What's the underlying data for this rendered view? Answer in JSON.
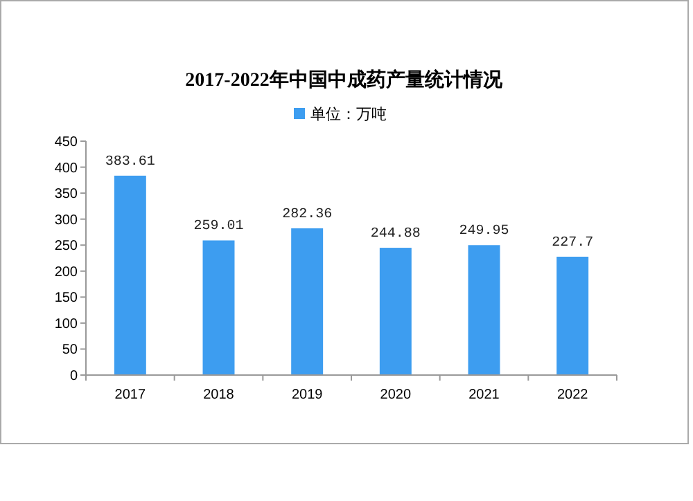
{
  "chart_data": {
    "type": "bar",
    "title": "2017-2022年中国中成药产量统计情况",
    "categories": [
      "2017",
      "2018",
      "2019",
      "2020",
      "2021",
      "2022"
    ],
    "series": [
      {
        "name": "单位：万吨",
        "color": "#3d9df0",
        "values": [
          383.61,
          259.01,
          282.36,
          244.88,
          249.95,
          227.7
        ]
      }
    ],
    "ylim": [
      0,
      450
    ],
    "yticks": [
      0,
      50,
      100,
      150,
      200,
      250,
      300,
      350,
      400,
      450
    ],
    "grid": false,
    "legend": "top",
    "data_labels": true
  }
}
